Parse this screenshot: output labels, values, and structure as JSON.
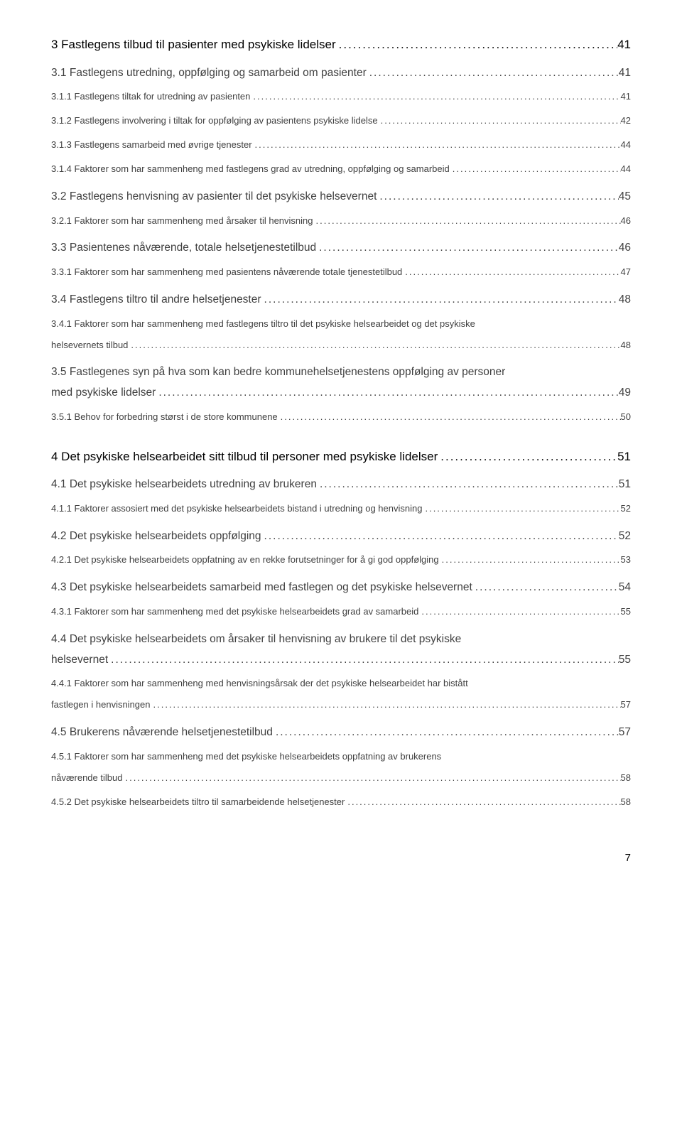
{
  "entries": [
    {
      "level": 1,
      "first": true,
      "label": "3 Fastlegens tilbud til pasienter med psykiske lidelser",
      "page": "41"
    },
    {
      "level": 2,
      "label": "3.1 Fastlegens utredning, oppfølging og samarbeid om pasienter",
      "page": "41"
    },
    {
      "level": 3,
      "label": "3.1.1 Fastlegens tiltak for utredning av pasienten",
      "page": "41"
    },
    {
      "level": 3,
      "label": "3.1.2 Fastlegens involvering i tiltak for oppfølging av pasientens psykiske lidelse",
      "page": "42"
    },
    {
      "level": 3,
      "label": "3.1.3 Fastlegens samarbeid med øvrige tjenester",
      "page": "44"
    },
    {
      "level": 3,
      "label": "3.1.4 Faktorer som har sammenheng med fastlegens grad av utredning, oppfølging og samarbeid",
      "page": "44"
    },
    {
      "level": 2,
      "label": "3.2 Fastlegens henvisning av pasienter til det psykiske helsevernet",
      "page": "45"
    },
    {
      "level": 3,
      "label": "3.2.1 Faktorer som har sammenheng med årsaker til henvisning",
      "page": "46"
    },
    {
      "level": 2,
      "label": "3.3 Pasientenes nåværende, totale helsetjenestetilbud",
      "page": "46"
    },
    {
      "level": 3,
      "label": "3.3.1 Faktorer som har sammenheng med pasientens nåværende totale tjenestetilbud",
      "page": "47"
    },
    {
      "level": 2,
      "label": "3.4 Fastlegens tiltro til andre helsetjenester",
      "page": "48"
    },
    {
      "level": 3,
      "multiline": true,
      "line1": "3.4.1 Faktorer som har sammenheng med fastlegens tiltro til det psykiske helsearbeidet og det psykiske",
      "line2": "helsevernets tilbud",
      "page": "48"
    },
    {
      "level": 2,
      "multiline": true,
      "line1": "3.5 Fastlegenes syn på hva som kan bedre kommunehelsetjenestens oppfølging av personer",
      "line2": "med psykiske lidelser",
      "page": "49"
    },
    {
      "level": 3,
      "label": "3.5.1 Behov for forbedring størst i de store kommunene",
      "page": "50"
    },
    {
      "level": 1,
      "label": "4 Det psykiske helsearbeidet sitt tilbud til personer med psykiske lidelser",
      "page": "51"
    },
    {
      "level": 2,
      "label": "4.1 Det psykiske helsearbeidets utredning av brukeren",
      "page": "51"
    },
    {
      "level": 3,
      "label": "4.1.1 Faktorer assosiert med det psykiske helsearbeidets bistand i utredning og henvisning",
      "page": "52"
    },
    {
      "level": 2,
      "label": "4.2 Det psykiske helsearbeidets oppfølging",
      "page": "52"
    },
    {
      "level": 3,
      "label": "4.2.1 Det psykiske helsearbeidets oppfatning av en rekke forutsetninger for å gi god oppfølging",
      "page": "53"
    },
    {
      "level": 2,
      "label": "4.3 Det psykiske helsearbeidets samarbeid med fastlegen og det psykiske helsevernet",
      "page": "54"
    },
    {
      "level": 3,
      "label": "4.3.1 Faktorer som har sammenheng med det psykiske helsearbeidets grad av samarbeid",
      "page": "55"
    },
    {
      "level": 2,
      "multiline": true,
      "line1": "4.4 Det psykiske helsearbeidets om årsaker til henvisning av brukere til det psykiske",
      "line2": "helsevernet",
      "page": "55"
    },
    {
      "level": 3,
      "multiline": true,
      "line1": "4.4.1 Faktorer som har sammenheng med henvisningsårsak der det psykiske helsearbeidet har bistått",
      "line2": "fastlegen i henvisningen",
      "page": "57"
    },
    {
      "level": 2,
      "label": "4.5 Brukerens nåværende helsetjenestetilbud",
      "page": "57"
    },
    {
      "level": 3,
      "multiline": true,
      "line1": "4.5.1 Faktorer som har sammenheng med det psykiske helsearbeidets oppfatning av brukerens",
      "line2": "nåværende tilbud",
      "page": "58"
    },
    {
      "level": 3,
      "label": "4.5.2 Det psykiske helsearbeidets tiltro til samarbeidende helsetjenester",
      "page": "58"
    }
  ],
  "pageNumber": "7"
}
